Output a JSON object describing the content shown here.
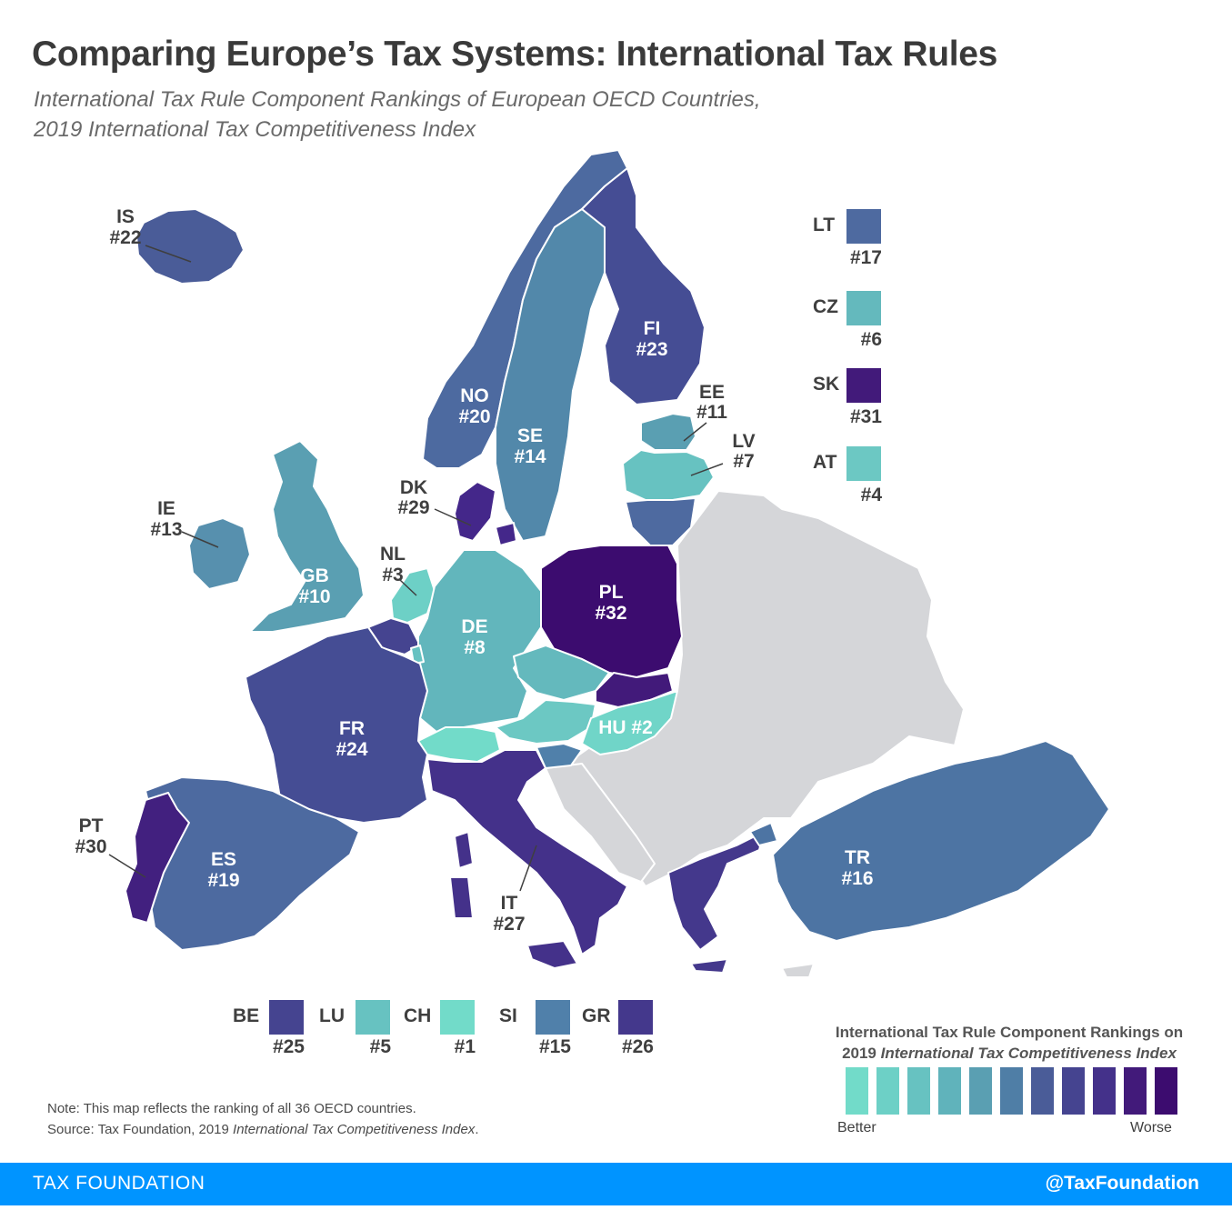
{
  "header": {
    "title": "Comparing Europe’s Tax Systems: International Tax Rules",
    "subtitle_line1": "International Tax Rule Component Rankings of European OECD Countries,",
    "subtitle_line2": "2019 International Tax Competitiveness Index"
  },
  "colors": {
    "rank_scale": [
      "#72dbc9",
      "#6dd0c6",
      "#67c2c1",
      "#60b3bb",
      "#5a9fb2",
      "#4f7ea6",
      "#4a5c98",
      "#454490",
      "#44318a",
      "#421a7a",
      "#3c0c6f"
    ],
    "non_oecd": "#d5d6d9",
    "footer_bar": "#0094ff"
  },
  "countries": {
    "IS": {
      "label": "IS",
      "rank": "#22",
      "color": "#4a5c98"
    },
    "NO": {
      "label": "NO",
      "rank": "#20",
      "color": "#4d6aa0"
    },
    "SE": {
      "label": "SE",
      "rank": "#14",
      "color": "#5288aa"
    },
    "FI": {
      "label": "FI",
      "rank": "#23",
      "color": "#454d94"
    },
    "EE": {
      "label": "EE",
      "rank": "#11",
      "color": "#5a9fb2"
    },
    "LV": {
      "label": "LV",
      "rank": "#7",
      "color": "#67c2c1"
    },
    "LT": {
      "label": "LT",
      "rank": "#17",
      "color": "#4e6aa0"
    },
    "DK": {
      "label": "DK",
      "rank": "#29",
      "color": "#44278a"
    },
    "IE": {
      "label": "IE",
      "rank": "#13",
      "color": "#5790ae"
    },
    "GB": {
      "label": "GB",
      "rank": "#10",
      "color": "#5a9fb2"
    },
    "NL": {
      "label": "NL",
      "rank": "#3",
      "color": "#6dd0c6"
    },
    "DE": {
      "label": "DE",
      "rank": "#8",
      "color": "#62b6bc"
    },
    "PL": {
      "label": "PL",
      "rank": "#32",
      "color": "#3c0c6f"
    },
    "CZ": {
      "label": "CZ",
      "rank": "#6",
      "color": "#64b9bd"
    },
    "SK": {
      "label": "SK",
      "rank": "#31",
      "color": "#421a7a"
    },
    "AT": {
      "label": "AT",
      "rank": "#4",
      "color": "#6cc8c3"
    },
    "HU": {
      "label": "HU",
      "rank": "#2",
      "color": "#70d5c8"
    },
    "CH": {
      "label": "CH",
      "rank": "#1",
      "color": "#72dbc9"
    },
    "FR": {
      "label": "FR",
      "rank": "#24",
      "color": "#454d94"
    },
    "BE": {
      "label": "BE",
      "rank": "#25",
      "color": "#454490"
    },
    "LU": {
      "label": "LU",
      "rank": "#5",
      "color": "#67c2c1"
    },
    "SI": {
      "label": "SI",
      "rank": "#15",
      "color": "#5080aa"
    },
    "IT": {
      "label": "IT",
      "rank": "#27",
      "color": "#44318a"
    },
    "ES": {
      "label": "ES",
      "rank": "#19",
      "color": "#4d6aa0"
    },
    "PT": {
      "label": "PT",
      "rank": "#30",
      "color": "#42207f"
    },
    "GR": {
      "label": "GR",
      "rank": "#26",
      "color": "#44388c"
    },
    "TR": {
      "label": "TR",
      "rank": "#16",
      "color": "#4d74a3"
    }
  },
  "map_labels": {
    "IS": "IS",
    "IS_rank": "#22",
    "NO": "NO",
    "NO_rank": "#20",
    "SE": "SE",
    "SE_rank": "#14",
    "FI": "FI",
    "FI_rank": "#23",
    "EE": "EE",
    "EE_rank": "#11",
    "LV": "LV",
    "LV_rank": "#7",
    "DK": "DK",
    "DK_rank": "#29",
    "IE": "IE",
    "IE_rank": "#13",
    "GB": "GB",
    "GB_rank": "#10",
    "NL": "NL",
    "NL_rank": "#3",
    "DE": "DE",
    "DE_rank": "#8",
    "PL": "PL",
    "PL_rank": "#32",
    "HU": "HU #2",
    "FR": "FR",
    "FR_rank": "#24",
    "IT": "IT",
    "IT_rank": "#27",
    "ES": "ES",
    "ES_rank": "#19",
    "PT": "PT",
    "PT_rank": "#30",
    "TR": "TR",
    "TR_rank": "#16"
  },
  "side_legend": [
    {
      "code": "LT",
      "rank": "#17",
      "color": "#4e6aa0"
    },
    {
      "code": "CZ",
      "rank": "#6",
      "color": "#64b9bd"
    },
    {
      "code": "SK",
      "rank": "#31",
      "color": "#421a7a"
    },
    {
      "code": "AT",
      "rank": "#4",
      "color": "#6cc8c3"
    }
  ],
  "bottom_legend": [
    {
      "code": "BE",
      "rank": "#25",
      "color": "#454490"
    },
    {
      "code": "LU",
      "rank": "#5",
      "color": "#67c2c1"
    },
    {
      "code": "CH",
      "rank": "#1",
      "color": "#72dbc9"
    },
    {
      "code": "SI",
      "rank": "#15",
      "color": "#5080aa"
    },
    {
      "code": "GR",
      "rank": "#26",
      "color": "#44388c"
    }
  ],
  "scale": {
    "title_line1": "International Tax Rule Component Rankings on",
    "title_line2_prefix": "2019",
    "title_line2_italic": "International Tax Competitiveness Index",
    "better": "Better",
    "worse": "Worse"
  },
  "note": {
    "line1": "Note: This map reflects the ranking of all 36 OECD countries.",
    "source_prefix": "Source: Tax Foundation, 2019",
    "source_italic": "International Tax Competitiveness Index",
    "source_suffix": "."
  },
  "footer": {
    "left": "TAX FOUNDATION",
    "right": "@TaxFoundation"
  }
}
